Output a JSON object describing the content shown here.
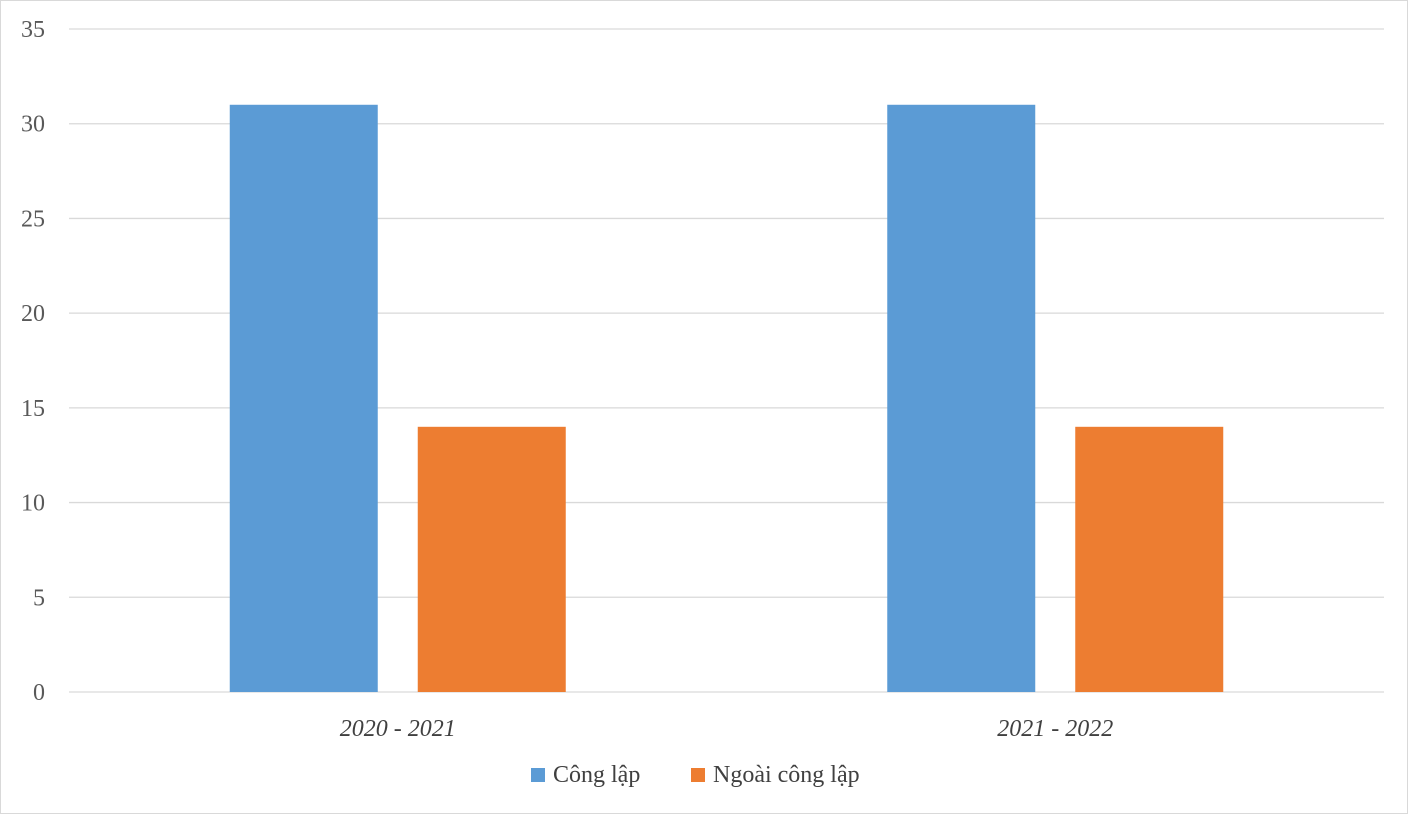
{
  "chart_data": {
    "type": "bar",
    "categories": [
      "2020 - 2021",
      "2021 - 2022"
    ],
    "series": [
      {
        "name": "Công lập",
        "values": [
          31,
          31
        ],
        "color": "#5b9bd5"
      },
      {
        "name": "Ngoài công lập",
        "values": [
          14,
          14
        ],
        "color": "#ed7d31"
      }
    ],
    "ylim": [
      0,
      35
    ],
    "yticks": [
      "0",
      "5",
      "10",
      "15",
      "20",
      "25",
      "30",
      "35"
    ],
    "grid": true,
    "legend_position": "bottom"
  }
}
